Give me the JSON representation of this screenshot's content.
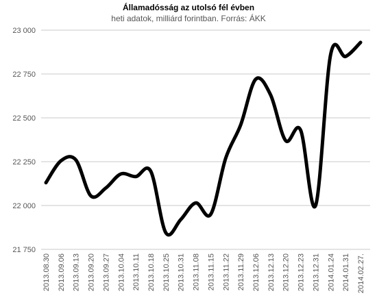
{
  "chart_data": {
    "type": "line",
    "title": "Államadósság az utolsó fél évben",
    "subtitle": "heti adatok, milliárd forintban. Forrás: ÁKK",
    "categories": [
      "2013.08.30",
      "2013.09.06",
      "2013.09.13",
      "2013.09.20",
      "2013.09.27",
      "2013.10.04",
      "2013.10.11",
      "2013.10.18",
      "2013.10.25",
      "2013.10.31",
      "2013.11.08",
      "2013.11.15",
      "2013.11.22",
      "2013.11.29",
      "2013.12.06",
      "2013.12.13",
      "2013.12.20",
      "2013.12.23",
      "2013.12.31",
      "2014.01.24",
      "2014.01.31",
      "2014.02.27."
    ],
    "values": [
      22130,
      22255,
      22260,
      22055,
      22100,
      22180,
      22165,
      22195,
      21845,
      21920,
      22015,
      21950,
      22270,
      22460,
      22720,
      22630,
      22370,
      22430,
      22000,
      22860,
      22850,
      22930
    ],
    "color": "#000000",
    "ylim": [
      21750,
      23000
    ],
    "yticks": [
      {
        "value": 21750,
        "label": "21 750"
      },
      {
        "value": 22000,
        "label": "22 000"
      },
      {
        "value": 22250,
        "label": "22 250"
      },
      {
        "value": 22500,
        "label": "22 500"
      },
      {
        "value": 22750,
        "label": "22 750"
      },
      {
        "value": 23000,
        "label": "23 000"
      }
    ],
    "grid": true
  }
}
